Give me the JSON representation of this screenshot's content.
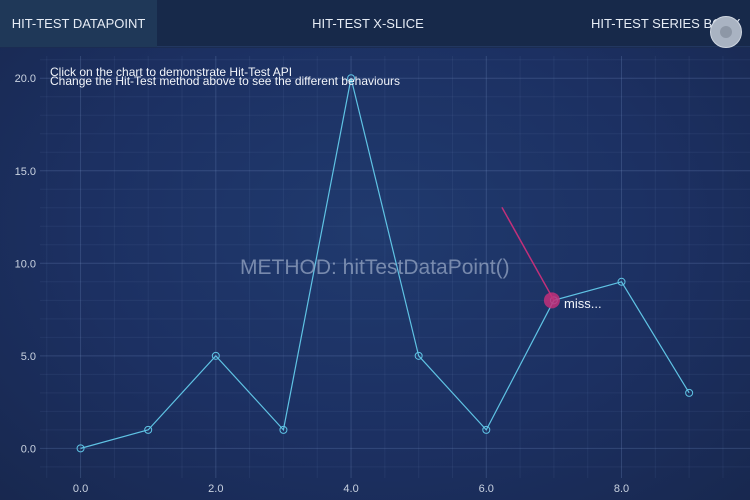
{
  "tabs": [
    {
      "label": "HIT-TEST DATAPOINT",
      "active": true
    },
    {
      "label": "HIT-TEST X-SLICE",
      "active": false
    },
    {
      "label": "HIT-TEST SERIES BODY",
      "active": false
    }
  ],
  "instructions": {
    "line1": "Click on the chart to demonstrate Hit-Test API",
    "line2": "Change the Hit-Test method above to see the different behaviours"
  },
  "method_label": "METHOD: hitTestDataPoint()",
  "hit_result_label": "miss...",
  "colors": {
    "background": "#1b2c52",
    "series": "#5fc3e4",
    "hit_marker": "#c2307a",
    "axis_text": "#c9d2e0"
  },
  "chart_data": {
    "type": "line",
    "x": [
      0,
      1,
      2,
      3,
      4,
      5,
      6,
      7,
      8,
      9
    ],
    "series": [
      {
        "values": [
          0,
          1,
          5,
          1,
          20,
          5,
          1,
          8,
          9,
          3
        ]
      }
    ],
    "xlim": [
      -0.6,
      9.9
    ],
    "ylim": [
      -1.6,
      21.2
    ],
    "xticks": [
      "0.0",
      "2.0",
      "4.0",
      "6.0",
      "8.0"
    ],
    "yticks": [
      "0.0",
      "5.0",
      "10.0",
      "15.0",
      "20.0"
    ],
    "grid": true,
    "hit_point": {
      "x": 7,
      "y": 8
    }
  }
}
